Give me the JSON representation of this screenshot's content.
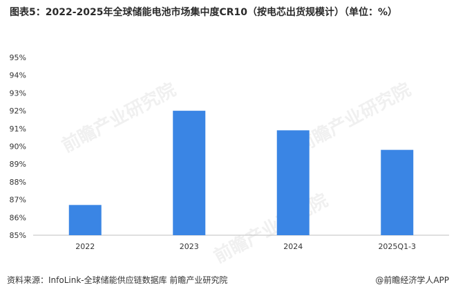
{
  "title": "图表5：2022-2025年全球储能电池市场集中度CR10（按电芯出货规模计）（单位：%）",
  "chart_data": {
    "type": "bar",
    "categories": [
      "2022",
      "2023",
      "2024",
      "2025Q1-3"
    ],
    "values": [
      86.7,
      92.0,
      90.9,
      89.8
    ],
    "ylim": [
      85,
      95
    ],
    "yticks": [
      "85%",
      "86%",
      "87%",
      "88%",
      "89%",
      "90%",
      "91%",
      "92%",
      "93%",
      "94%",
      "95%"
    ],
    "bar_color": "#3a85e4",
    "grid": false,
    "legend": "none"
  },
  "source": "资料来源：InfoLink-全球储能供应链数据库  前瞻产业研究院",
  "brand": "@前瞻经济学人APP",
  "watermark_text": "前瞻产业研究院"
}
